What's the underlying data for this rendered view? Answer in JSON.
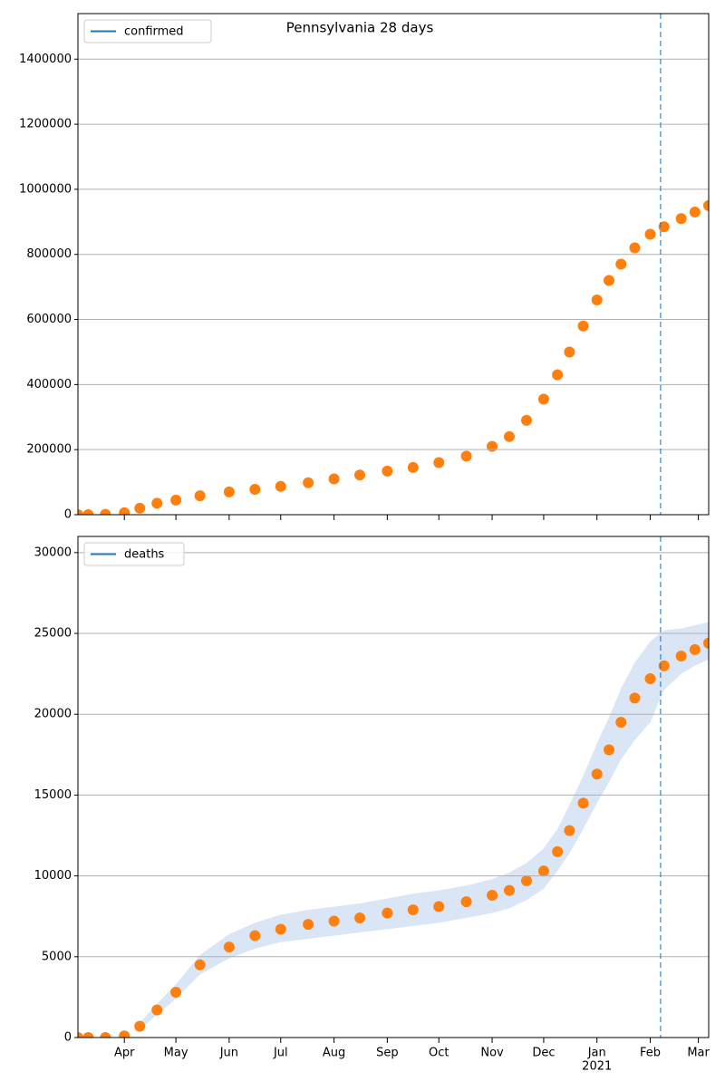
{
  "chart_data": [
    {
      "type": "scatter",
      "title": "Pennsylvania 28 days",
      "x": [
        4,
        10,
        20,
        31,
        40,
        50,
        61,
        75,
        92,
        107,
        122,
        138,
        153,
        168,
        184,
        199,
        214,
        230,
        245,
        255,
        265,
        275,
        283,
        290,
        298,
        306,
        313,
        320,
        328,
        337,
        345,
        355,
        363,
        371
      ],
      "series": [
        {
          "name": "confirmed",
          "color": "#ff7f0e",
          "legend_color": "#1f77b4",
          "values": [
            0,
            0,
            1000,
            6000,
            20000,
            35000,
            45000,
            58000,
            70000,
            78000,
            87000,
            98000,
            110000,
            122000,
            134000,
            145000,
            160000,
            180000,
            210000,
            240000,
            290000,
            355000,
            430000,
            500000,
            580000,
            660000,
            720000,
            770000,
            820000,
            862000,
            885000,
            910000,
            930000,
            950000
          ]
        }
      ],
      "xlim": [
        4,
        371
      ],
      "xticks": [
        31,
        61,
        92,
        122,
        153,
        184,
        214,
        245,
        275,
        306,
        337,
        365
      ],
      "ylim": [
        0,
        1540000
      ],
      "yticks": [
        0,
        200000,
        400000,
        600000,
        800000,
        1000000,
        1200000,
        1400000
      ],
      "vline": 343,
      "vline_color": "#1f77b4",
      "grid": true,
      "legend": "upper left"
    },
    {
      "type": "scatter",
      "x": [
        4,
        10,
        20,
        31,
        40,
        50,
        61,
        75,
        92,
        107,
        122,
        138,
        153,
        168,
        184,
        199,
        214,
        230,
        245,
        255,
        265,
        275,
        283,
        290,
        298,
        306,
        313,
        320,
        328,
        337,
        345,
        355,
        363,
        371
      ],
      "series": [
        {
          "name": "deaths",
          "color": "#ff7f0e",
          "legend_color": "#1f77b4",
          "values": [
            0,
            0,
            0,
            100,
            700,
            1700,
            2800,
            4500,
            5600,
            6300,
            6700,
            7000,
            7200,
            7400,
            7700,
            7900,
            8100,
            8400,
            8800,
            9100,
            9700,
            10300,
            11500,
            12800,
            14500,
            16300,
            17800,
            19500,
            21000,
            22200,
            23000,
            23600,
            24000,
            24400
          ]
        }
      ],
      "bands": [
        {
          "color": "#aec7e8",
          "lower": [
            null,
            null,
            null,
            null,
            500,
            1400,
            2400,
            3900,
            4900,
            5500,
            5900,
            6100,
            6300,
            6500,
            6700,
            6900,
            7100,
            7400,
            7700,
            8000,
            8500,
            9200,
            10300,
            11400,
            12900,
            14500,
            15800,
            17200,
            18400,
            19500,
            21500,
            22500,
            23000,
            23400
          ],
          "upper": [
            null,
            null,
            null,
            null,
            900,
            2100,
            3300,
            5100,
            6400,
            7100,
            7600,
            7900,
            8100,
            8300,
            8600,
            8900,
            9100,
            9400,
            9800,
            10200,
            10800,
            11700,
            12900,
            14400,
            16200,
            18200,
            19800,
            21600,
            23200,
            24500,
            25200,
            25300,
            25500,
            25700
          ]
        }
      ],
      "xlim": [
        4,
        371
      ],
      "xticks": [
        {
          "value": 31,
          "label": "Apr"
        },
        {
          "value": 61,
          "label": "May"
        },
        {
          "value": 92,
          "label": "Jun"
        },
        {
          "value": 122,
          "label": "Jul"
        },
        {
          "value": 153,
          "label": "Aug"
        },
        {
          "value": 184,
          "label": "Sep"
        },
        {
          "value": 214,
          "label": "Oct"
        },
        {
          "value": 245,
          "label": "Nov"
        },
        {
          "value": 275,
          "label": "Dec"
        },
        {
          "value": 306,
          "label": "Jan"
        },
        {
          "value": 337,
          "label": "Feb"
        },
        {
          "value": 365,
          "label": "Mar"
        }
      ],
      "xtick_year": {
        "value": 306,
        "label": "2021"
      },
      "ylim": [
        0,
        31000
      ],
      "yticks": [
        0,
        5000,
        10000,
        15000,
        20000,
        25000,
        30000
      ],
      "vline": 343,
      "vline_color": "#1f77b4",
      "grid": true,
      "legend": "upper left"
    }
  ]
}
